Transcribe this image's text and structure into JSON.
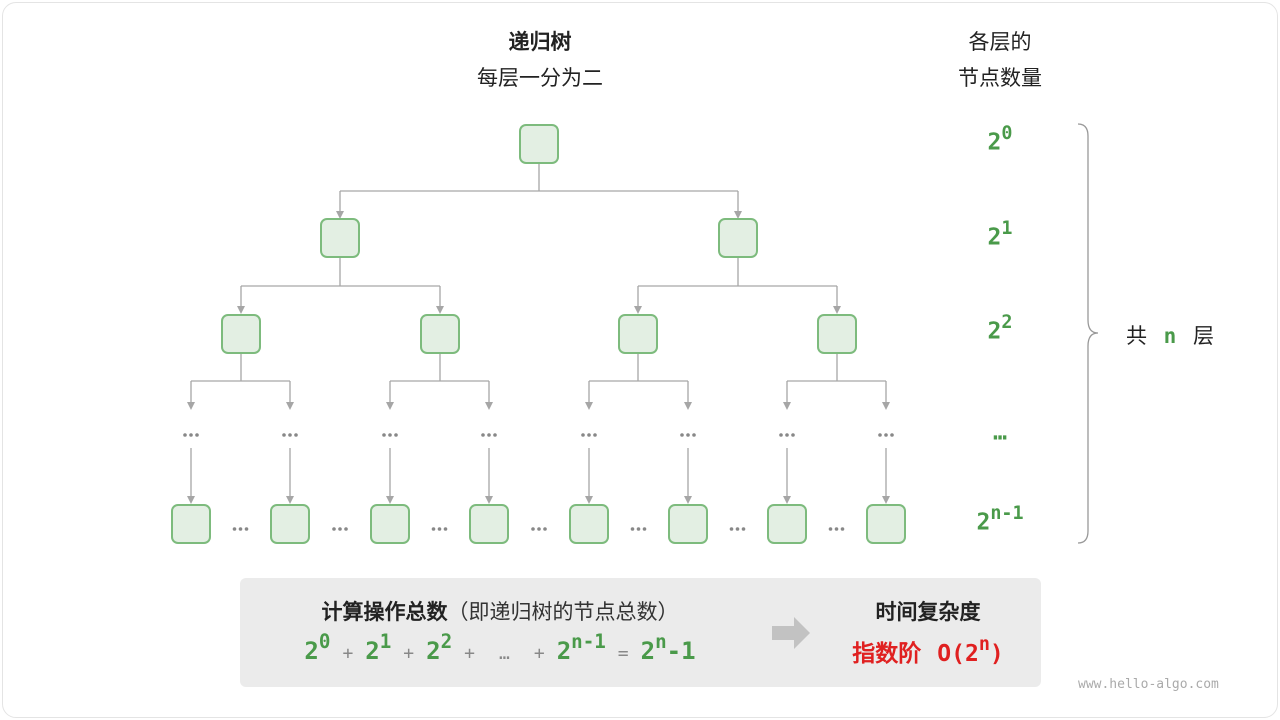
{
  "title": {
    "line1": "递归树",
    "line2": "每层一分为二"
  },
  "count_header": {
    "line1": "各层的",
    "line2": "节点数量"
  },
  "levels": [
    {
      "base": "2",
      "exp": "0"
    },
    {
      "base": "2",
      "exp": "1"
    },
    {
      "base": "2",
      "exp": "2"
    },
    {
      "base": "…",
      "exp": ""
    },
    {
      "base": "2",
      "exp": "n-1"
    }
  ],
  "total_layers": {
    "prefix": "共",
    "n": "n",
    "suffix": "层"
  },
  "summary": {
    "heading": "计算操作总数",
    "heading_note": "（即递归树的节点总数）",
    "formula": [
      {
        "base": "2",
        "exp": "0"
      },
      {
        "op": "+"
      },
      {
        "base": "2",
        "exp": "1"
      },
      {
        "op": "+"
      },
      {
        "base": "2",
        "exp": "2"
      },
      {
        "op": "+"
      },
      {
        "op": "…"
      },
      {
        "op": "+"
      },
      {
        "base": "2",
        "exp": "n-1"
      },
      {
        "op": "="
      },
      {
        "base": "2",
        "exp": "n",
        "tail": "-1"
      }
    ],
    "complexity_heading": "时间复杂度",
    "complexity_name": "指数阶",
    "complexity_expr": {
      "pre": "O(2",
      "exp": "n",
      "post": ")"
    }
  },
  "watermark": "www.hello-algo.com",
  "colors": {
    "node_fill": "#e3efe3",
    "node_stroke": "#7dbb7d",
    "green": "#4a9a4a",
    "red": "#e02020",
    "edge": "#a6a6a6"
  }
}
